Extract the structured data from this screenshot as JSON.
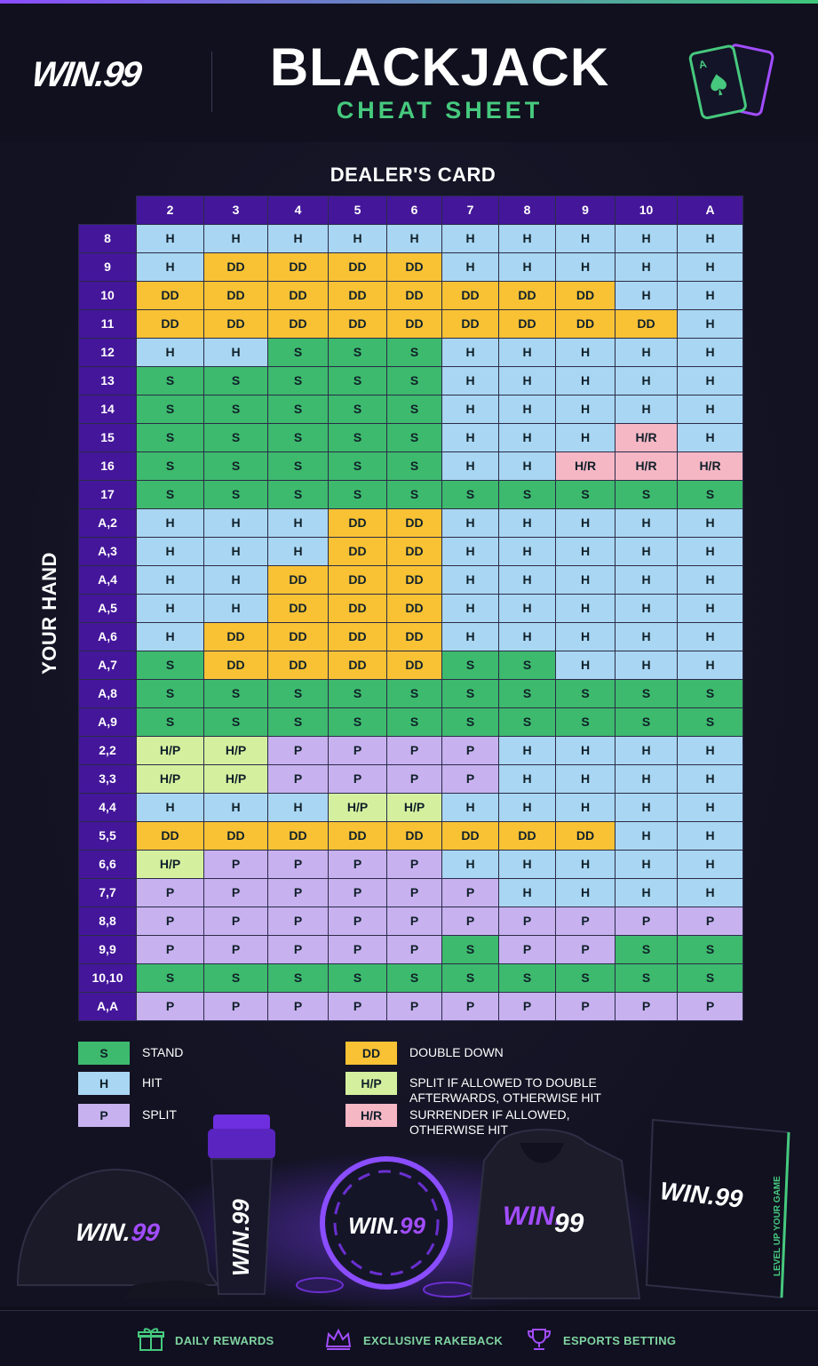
{
  "brand": {
    "logo_text": "WIN.99"
  },
  "header": {
    "title": "BLACKJACK",
    "subtitle": "CHEAT SHEET"
  },
  "dealer_label": "DEALER'S CARD",
  "your_hand_label": "YOUR HAND",
  "columns": [
    "2",
    "3",
    "4",
    "5",
    "6",
    "7",
    "8",
    "9",
    "10",
    "A"
  ],
  "rows": [
    {
      "hand": "8",
      "cells": [
        "H",
        "H",
        "H",
        "H",
        "H",
        "H",
        "H",
        "H",
        "H",
        "H"
      ]
    },
    {
      "hand": "9",
      "cells": [
        "H",
        "DD",
        "DD",
        "DD",
        "DD",
        "H",
        "H",
        "H",
        "H",
        "H"
      ]
    },
    {
      "hand": "10",
      "cells": [
        "DD",
        "DD",
        "DD",
        "DD",
        "DD",
        "DD",
        "DD",
        "DD",
        "H",
        "H"
      ]
    },
    {
      "hand": "11",
      "cells": [
        "DD",
        "DD",
        "DD",
        "DD",
        "DD",
        "DD",
        "DD",
        "DD",
        "DD",
        "H"
      ]
    },
    {
      "hand": "12",
      "cells": [
        "H",
        "H",
        "S",
        "S",
        "S",
        "H",
        "H",
        "H",
        "H",
        "H"
      ]
    },
    {
      "hand": "13",
      "cells": [
        "S",
        "S",
        "S",
        "S",
        "S",
        "H",
        "H",
        "H",
        "H",
        "H"
      ]
    },
    {
      "hand": "14",
      "cells": [
        "S",
        "S",
        "S",
        "S",
        "S",
        "H",
        "H",
        "H",
        "H",
        "H"
      ]
    },
    {
      "hand": "15",
      "cells": [
        "S",
        "S",
        "S",
        "S",
        "S",
        "H",
        "H",
        "H",
        "H/R",
        "H"
      ]
    },
    {
      "hand": "16",
      "cells": [
        "S",
        "S",
        "S",
        "S",
        "S",
        "H",
        "H",
        "H/R",
        "H/R",
        "H/R"
      ]
    },
    {
      "hand": "17",
      "cells": [
        "S",
        "S",
        "S",
        "S",
        "S",
        "S",
        "S",
        "S",
        "S",
        "S"
      ]
    },
    {
      "hand": "A,2",
      "cells": [
        "H",
        "H",
        "H",
        "DD",
        "DD",
        "H",
        "H",
        "H",
        "H",
        "H"
      ]
    },
    {
      "hand": "A,3",
      "cells": [
        "H",
        "H",
        "H",
        "DD",
        "DD",
        "H",
        "H",
        "H",
        "H",
        "H"
      ]
    },
    {
      "hand": "A,4",
      "cells": [
        "H",
        "H",
        "DD",
        "DD",
        "DD",
        "H",
        "H",
        "H",
        "H",
        "H"
      ]
    },
    {
      "hand": "A,5",
      "cells": [
        "H",
        "H",
        "DD",
        "DD",
        "DD",
        "H",
        "H",
        "H",
        "H",
        "H"
      ]
    },
    {
      "hand": "A,6",
      "cells": [
        "H",
        "DD",
        "DD",
        "DD",
        "DD",
        "H",
        "H",
        "H",
        "H",
        "H"
      ]
    },
    {
      "hand": "A,7",
      "cells": [
        "S",
        "DD",
        "DD",
        "DD",
        "DD",
        "S",
        "S",
        "H",
        "H",
        "H"
      ]
    },
    {
      "hand": "A,8",
      "cells": [
        "S",
        "S",
        "S",
        "S",
        "S",
        "S",
        "S",
        "S",
        "S",
        "S"
      ]
    },
    {
      "hand": "A,9",
      "cells": [
        "S",
        "S",
        "S",
        "S",
        "S",
        "S",
        "S",
        "S",
        "S",
        "S"
      ]
    },
    {
      "hand": "2,2",
      "cells": [
        "H/P",
        "H/P",
        "P",
        "P",
        "P",
        "P",
        "H",
        "H",
        "H",
        "H"
      ]
    },
    {
      "hand": "3,3",
      "cells": [
        "H/P",
        "H/P",
        "P",
        "P",
        "P",
        "P",
        "H",
        "H",
        "H",
        "H"
      ]
    },
    {
      "hand": "4,4",
      "cells": [
        "H",
        "H",
        "H",
        "H/P",
        "H/P",
        "H",
        "H",
        "H",
        "H",
        "H"
      ]
    },
    {
      "hand": "5,5",
      "cells": [
        "DD",
        "DD",
        "DD",
        "DD",
        "DD",
        "DD",
        "DD",
        "DD",
        "H",
        "H"
      ]
    },
    {
      "hand": "6,6",
      "cells": [
        "H/P",
        "P",
        "P",
        "P",
        "P",
        "H",
        "H",
        "H",
        "H",
        "H"
      ]
    },
    {
      "hand": "7,7",
      "cells": [
        "P",
        "P",
        "P",
        "P",
        "P",
        "P",
        "H",
        "H",
        "H",
        "H"
      ]
    },
    {
      "hand": "8,8",
      "cells": [
        "P",
        "P",
        "P",
        "P",
        "P",
        "P",
        "P",
        "P",
        "P",
        "P"
      ]
    },
    {
      "hand": "9,9",
      "cells": [
        "P",
        "P",
        "P",
        "P",
        "P",
        "S",
        "P",
        "P",
        "S",
        "S"
      ]
    },
    {
      "hand": "10,10",
      "cells": [
        "S",
        "S",
        "S",
        "S",
        "S",
        "S",
        "S",
        "S",
        "S",
        "S"
      ]
    },
    {
      "hand": "A,A",
      "cells": [
        "P",
        "P",
        "P",
        "P",
        "P",
        "P",
        "P",
        "P",
        "P",
        "P"
      ]
    }
  ],
  "legend": [
    {
      "code": "S",
      "text": "STAND",
      "color": "#3dba6d"
    },
    {
      "code": "H",
      "text": "HIT",
      "color": "#a9d6f2"
    },
    {
      "code": "P",
      "text": "SPLIT",
      "color": "#c7b1ef"
    },
    {
      "code": "DD",
      "text": "DOUBLE DOWN",
      "color": "#f8c234"
    },
    {
      "code": "H/P",
      "text": "SPLIT IF ALLOWED TO DOUBLE AFTERWARDS, OTHERWISE HIT",
      "color": "#d4f09e"
    },
    {
      "code": "H/R",
      "text": "SURRENDER IF ALLOWED, OTHERWISE HIT",
      "color": "#f6b7c5"
    }
  ],
  "merch": {
    "box_text": "LEVEL UP YOUR GAME"
  },
  "footer": [
    {
      "label": "DAILY REWARDS",
      "icon": "gift-icon"
    },
    {
      "label": "EXCLUSIVE RAKEBACK",
      "icon": "crown-icon"
    },
    {
      "label": "ESPORTS BETTING",
      "icon": "trophy-icon"
    }
  ],
  "colors": {
    "accent_green": "#46c97e",
    "accent_purple": "#44169a"
  }
}
